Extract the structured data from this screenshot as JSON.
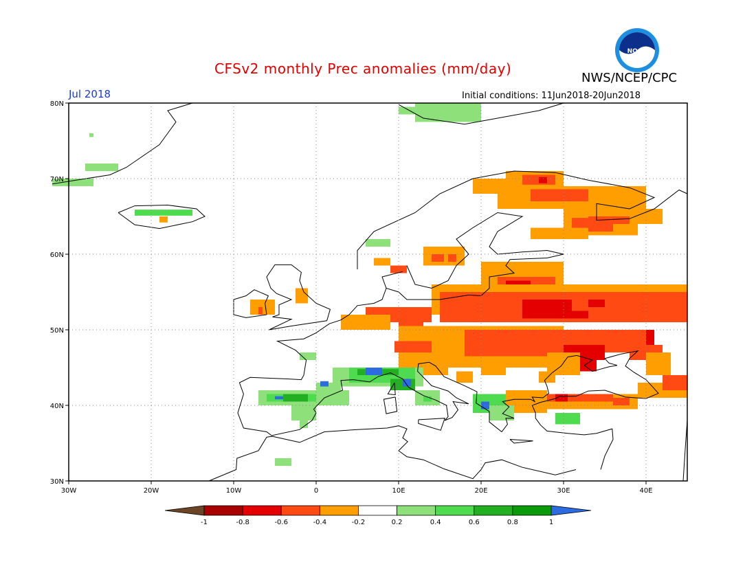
{
  "header": {
    "title": "CFSv2 monthly Prec anomalies (mm/day)",
    "valid_month": "Jul 2018",
    "agency": "NWS/NCEP/CPC",
    "initial_conditions": "Initial conditions: 11Jun2018-20Jun2018"
  },
  "logo": {
    "text": "NOAA"
  },
  "map": {
    "lon_range": [
      -30,
      45
    ],
    "lat_range": [
      30,
      80
    ],
    "lon_labels": [
      "30W",
      "20W",
      "10W",
      "0",
      "10E",
      "20E",
      "30E",
      "40E"
    ],
    "lat_labels": [
      "30N",
      "40N",
      "50N",
      "60N",
      "70N",
      "80N"
    ],
    "grid": "dotted"
  },
  "legend": {
    "tick_labels": [
      "-1",
      "-0.8",
      "-0.6",
      "-0.4",
      "-0.2",
      "0.2",
      "0.4",
      "0.6",
      "0.8",
      "1"
    ],
    "colors": [
      "#6b4525",
      "#a80000",
      "#e50000",
      "#ff4a14",
      "#ff9e00",
      "#ffffff",
      "#8ee07a",
      "#4fdb4f",
      "#22b022",
      "#0a9a0a",
      "#2d6ce0"
    ]
  },
  "anomaly_colors": {
    "strong_dry": "#a80000",
    "mod_dry": "#e50000",
    "dry": "#ff4a14",
    "light_dry": "#ff9e00",
    "light_wet": "#8ee07a",
    "wet": "#4fdb4f",
    "wetter": "#22b022",
    "very_wet": "#2d6ce0"
  }
}
